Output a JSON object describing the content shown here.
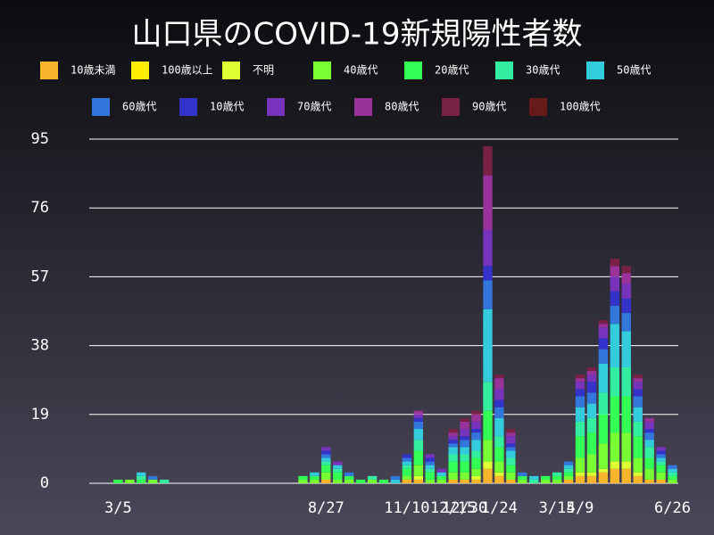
{
  "chart_data": {
    "type": "stacked_bar",
    "title": "山口県のCOVID-19新規陽性者数",
    "categories": [
      null,
      null,
      "3/5",
      null,
      null,
      null,
      null,
      null,
      null,
      null,
      null,
      null,
      null,
      null,
      null,
      null,
      null,
      null,
      null,
      null,
      "8/27",
      null,
      null,
      null,
      null,
      null,
      null,
      "11/10",
      null,
      null,
      null,
      "12/15",
      "12/30",
      null,
      null,
      "1/24",
      null,
      null,
      null,
      null,
      "3/15",
      null,
      "4/9",
      null,
      null,
      null,
      null,
      null,
      null,
      null,
      "6/26"
    ],
    "ylim": [
      0,
      95
    ],
    "yticks": [
      0,
      19,
      38,
      57,
      76,
      95
    ],
    "grid": true,
    "series": [
      {
        "name": "10歳未満",
        "color": "#f7b52c",
        "values": [
          0,
          0,
          0,
          0,
          0,
          0,
          0,
          0,
          0,
          0,
          0,
          0,
          0,
          0,
          0,
          0,
          0,
          0,
          0,
          0,
          1,
          0,
          0,
          0,
          0,
          0,
          0,
          1,
          1,
          0,
          0,
          1,
          1,
          1,
          4,
          2,
          1,
          0,
          0,
          0,
          0,
          1,
          2,
          2,
          3,
          4,
          4,
          2,
          1,
          1,
          0
        ]
      },
      {
        "name": "100歳以上",
        "color": "#ffee00",
        "values": [
          0,
          0,
          0,
          0,
          0,
          0,
          0,
          0,
          0,
          0,
          0,
          0,
          0,
          0,
          0,
          0,
          0,
          0,
          0,
          0,
          0,
          0,
          0,
          0,
          0,
          0,
          0,
          0,
          0,
          0,
          0,
          0,
          0,
          0,
          0,
          0,
          0,
          0,
          0,
          0,
          0,
          0,
          0,
          0,
          0,
          0,
          0,
          0,
          0,
          0,
          0
        ]
      },
      {
        "name": "不明",
        "color": "#ddff33",
        "values": [
          0,
          0,
          0,
          0,
          0,
          0,
          0,
          0,
          0,
          0,
          0,
          0,
          0,
          0,
          0,
          0,
          0,
          0,
          0,
          0,
          0,
          0,
          0,
          0,
          0,
          0,
          0,
          0,
          1,
          0,
          0,
          0,
          0,
          1,
          2,
          1,
          0,
          0,
          0,
          0,
          0,
          0,
          1,
          1,
          1,
          2,
          2,
          1,
          0,
          0,
          0
        ]
      },
      {
        "name": "40歳代",
        "color": "#77ff33",
        "values": [
          0,
          0,
          0,
          1,
          0,
          1,
          0,
          0,
          0,
          0,
          0,
          0,
          0,
          0,
          0,
          0,
          0,
          0,
          1,
          1,
          2,
          1,
          1,
          0,
          1,
          0,
          0,
          1,
          3,
          1,
          1,
          2,
          2,
          2,
          6,
          3,
          2,
          1,
          0,
          1,
          1,
          1,
          4,
          5,
          7,
          8,
          8,
          4,
          3,
          2,
          1
        ]
      },
      {
        "name": "20歳代",
        "color": "#33ff55",
        "values": [
          0,
          0,
          1,
          0,
          1,
          0,
          0,
          0,
          0,
          0,
          0,
          0,
          0,
          0,
          0,
          0,
          0,
          0,
          1,
          1,
          2,
          2,
          1,
          1,
          0,
          1,
          0,
          2,
          4,
          2,
          1,
          3,
          3,
          3,
          8,
          4,
          2,
          1,
          0,
          1,
          1,
          1,
          6,
          6,
          8,
          10,
          10,
          6,
          3,
          2,
          1
        ]
      },
      {
        "name": "30歳代",
        "color": "#33eea0",
        "values": [
          0,
          0,
          0,
          0,
          1,
          0,
          1,
          0,
          0,
          0,
          0,
          0,
          0,
          0,
          0,
          0,
          0,
          0,
          0,
          0,
          1,
          1,
          0,
          0,
          1,
          0,
          0,
          1,
          3,
          1,
          0,
          2,
          2,
          2,
          8,
          3,
          2,
          0,
          1,
          0,
          1,
          1,
          4,
          4,
          6,
          8,
          8,
          4,
          3,
          1,
          1
        ]
      },
      {
        "name": "50歳代",
        "color": "#33ccdd",
        "values": [
          0,
          0,
          0,
          0,
          1,
          0,
          0,
          0,
          0,
          0,
          0,
          0,
          0,
          0,
          0,
          0,
          0,
          0,
          0,
          1,
          1,
          1,
          0,
          0,
          0,
          0,
          1,
          1,
          3,
          1,
          1,
          2,
          2,
          3,
          20,
          5,
          2,
          0,
          1,
          0,
          0,
          1,
          4,
          4,
          8,
          12,
          10,
          4,
          2,
          1,
          1
        ]
      },
      {
        "name": "60歳代",
        "color": "#3377dd",
        "values": [
          0,
          0,
          0,
          0,
          0,
          1,
          0,
          0,
          0,
          0,
          0,
          0,
          0,
          0,
          0,
          0,
          0,
          0,
          0,
          0,
          1,
          0,
          1,
          0,
          0,
          0,
          1,
          1,
          2,
          1,
          0,
          1,
          2,
          2,
          8,
          3,
          1,
          1,
          0,
          0,
          0,
          1,
          3,
          3,
          4,
          5,
          5,
          3,
          2,
          1,
          1
        ]
      },
      {
        "name": "10歳代",
        "color": "#3333cc",
        "values": [
          0,
          0,
          0,
          0,
          0,
          0,
          0,
          0,
          0,
          0,
          0,
          0,
          0,
          0,
          0,
          0,
          0,
          0,
          0,
          0,
          1,
          0,
          0,
          0,
          0,
          0,
          0,
          1,
          1,
          1,
          0,
          1,
          1,
          1,
          4,
          2,
          1,
          0,
          0,
          0,
          0,
          0,
          2,
          3,
          3,
          4,
          4,
          2,
          1,
          1,
          0
        ]
      },
      {
        "name": "70歳代",
        "color": "#7733bb",
        "values": [
          0,
          0,
          0,
          0,
          0,
          0,
          0,
          0,
          0,
          0,
          0,
          0,
          0,
          0,
          0,
          0,
          0,
          0,
          0,
          0,
          1,
          1,
          0,
          0,
          0,
          0,
          0,
          0,
          1,
          1,
          1,
          1,
          2,
          2,
          10,
          3,
          2,
          0,
          0,
          0,
          0,
          0,
          2,
          2,
          3,
          4,
          4,
          2,
          2,
          1,
          0
        ]
      },
      {
        "name": "80歳代",
        "color": "#993399",
        "values": [
          0,
          0,
          0,
          0,
          0,
          0,
          0,
          0,
          0,
          0,
          0,
          0,
          0,
          0,
          0,
          0,
          0,
          0,
          0,
          0,
          0,
          0,
          0,
          0,
          0,
          0,
          0,
          0,
          1,
          0,
          0,
          1,
          2,
          2,
          15,
          3,
          1,
          0,
          0,
          0,
          0,
          0,
          1,
          1,
          1,
          3,
          3,
          1,
          1,
          0,
          0
        ]
      },
      {
        "name": "90歳代",
        "color": "#772244",
        "values": [
          0,
          0,
          0,
          0,
          0,
          0,
          0,
          0,
          0,
          0,
          0,
          0,
          0,
          0,
          0,
          0,
          0,
          0,
          0,
          0,
          0,
          0,
          0,
          0,
          0,
          0,
          0,
          0,
          0,
          0,
          0,
          1,
          1,
          1,
          8,
          1,
          1,
          0,
          0,
          0,
          0,
          0,
          1,
          1,
          1,
          2,
          2,
          1,
          0,
          0,
          0
        ]
      },
      {
        "name": "100歳代",
        "color": "#661a1a",
        "values": [
          0,
          0,
          0,
          0,
          0,
          0,
          0,
          0,
          0,
          0,
          0,
          0,
          0,
          0,
          0,
          0,
          0,
          0,
          0,
          0,
          0,
          0,
          0,
          0,
          0,
          0,
          0,
          0,
          0,
          0,
          0,
          0,
          0,
          0,
          0,
          0,
          0,
          0,
          0,
          0,
          0,
          0,
          0,
          0,
          0,
          0,
          0,
          0,
          0,
          0,
          0
        ]
      }
    ]
  }
}
